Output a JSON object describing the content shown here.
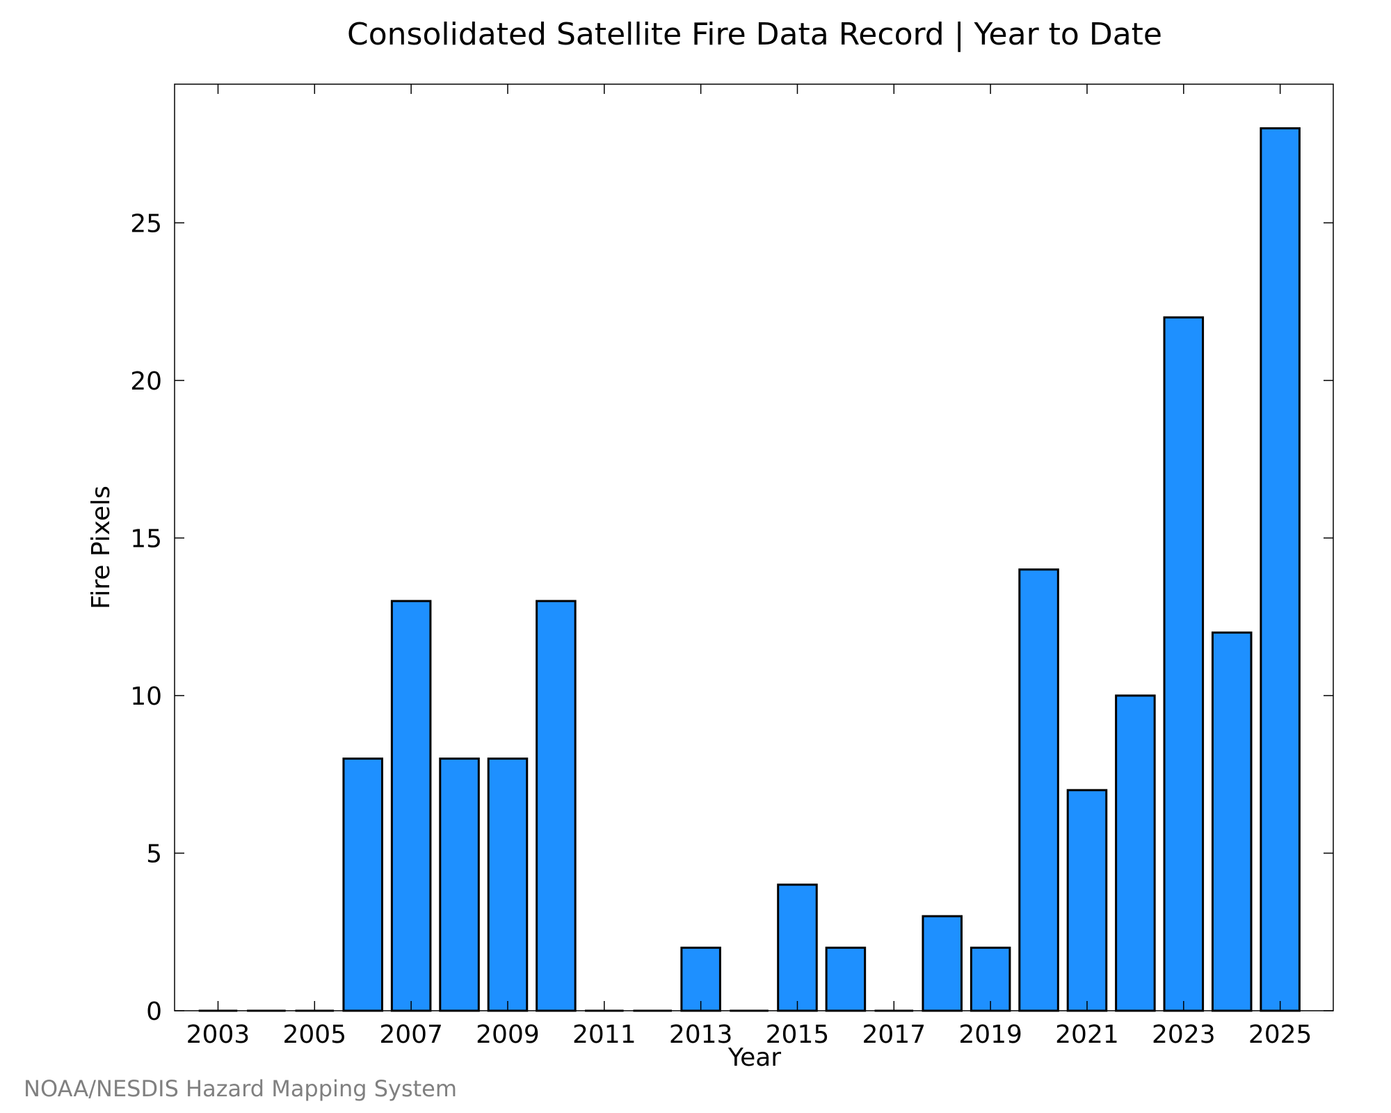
{
  "chart_data": {
    "type": "bar",
    "title": "Consolidated Satellite Fire Data Record | Year to Date",
    "xlabel": "Year",
    "ylabel": "Fire Pixels",
    "credit": "NOAA/NESDIS Hazard Mapping System",
    "categories": [
      2003,
      2004,
      2005,
      2006,
      2007,
      2008,
      2009,
      2010,
      2011,
      2012,
      2013,
      2014,
      2015,
      2016,
      2017,
      2018,
      2019,
      2020,
      2021,
      2022,
      2023,
      2024,
      2025
    ],
    "values": [
      0,
      0,
      0,
      8,
      13,
      8,
      8,
      13,
      0,
      0,
      2,
      0,
      4,
      2,
      0,
      3,
      2,
      14,
      7,
      10,
      22,
      12,
      28
    ],
    "x_ticks": [
      "2003",
      "2005",
      "2007",
      "2009",
      "2011",
      "2013",
      "2015",
      "2017",
      "2019",
      "2021",
      "2023",
      "2025"
    ],
    "y_ticks": [
      "0",
      "5",
      "10",
      "15",
      "20",
      "25"
    ],
    "xlim": [
      2002.1,
      2026.1
    ],
    "ylim": [
      0,
      29.4
    ],
    "bar_color": "#1e90ff",
    "bar_edge_color": "#000000",
    "credit_color": "#808080",
    "grid": false,
    "legend": "none"
  }
}
